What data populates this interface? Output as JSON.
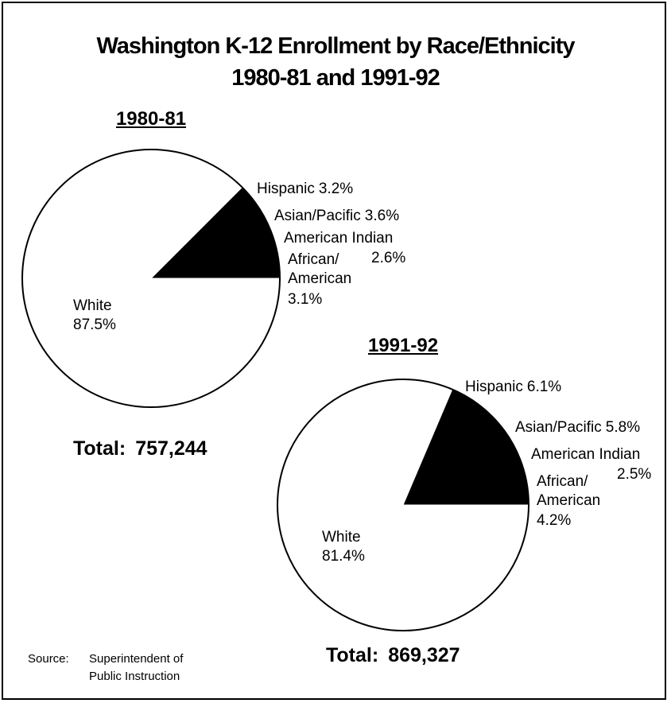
{
  "title": "Washington K-12 Enrollment by Race/Ethnicity",
  "subtitle": "1980-81 and 1991-92",
  "source_label": "Source:",
  "source": "Superintendent of Public Instruction",
  "chart_data": [
    {
      "type": "pie",
      "title": "1980-81",
      "categories": [
        "African/ American",
        "American Indian",
        "Asian/Pacific",
        "Hispanic",
        "White"
      ],
      "values": [
        3.1,
        2.6,
        3.6,
        3.2,
        87.5
      ],
      "value_labels": [
        "3.1%",
        "2.6%",
        "3.6%",
        "3.2%",
        "87.5%"
      ],
      "colors": [
        "#000000",
        "#000000",
        "#000000",
        "#000000",
        "#ffffff"
      ],
      "total_label": "Total:",
      "total": "757,244"
    },
    {
      "type": "pie",
      "title": "1991-92",
      "categories": [
        "African/ American",
        "American Indian",
        "Asian/Pacific",
        "Hispanic",
        "White"
      ],
      "values": [
        4.2,
        2.5,
        5.8,
        6.1,
        81.4
      ],
      "value_labels": [
        "4.2%",
        "2.5%",
        "5.8%",
        "6.1%",
        "81.4%"
      ],
      "colors": [
        "#000000",
        "#000000",
        "#000000",
        "#000000",
        "#ffffff"
      ],
      "total_label": "Total:",
      "total": "869,327"
    }
  ]
}
